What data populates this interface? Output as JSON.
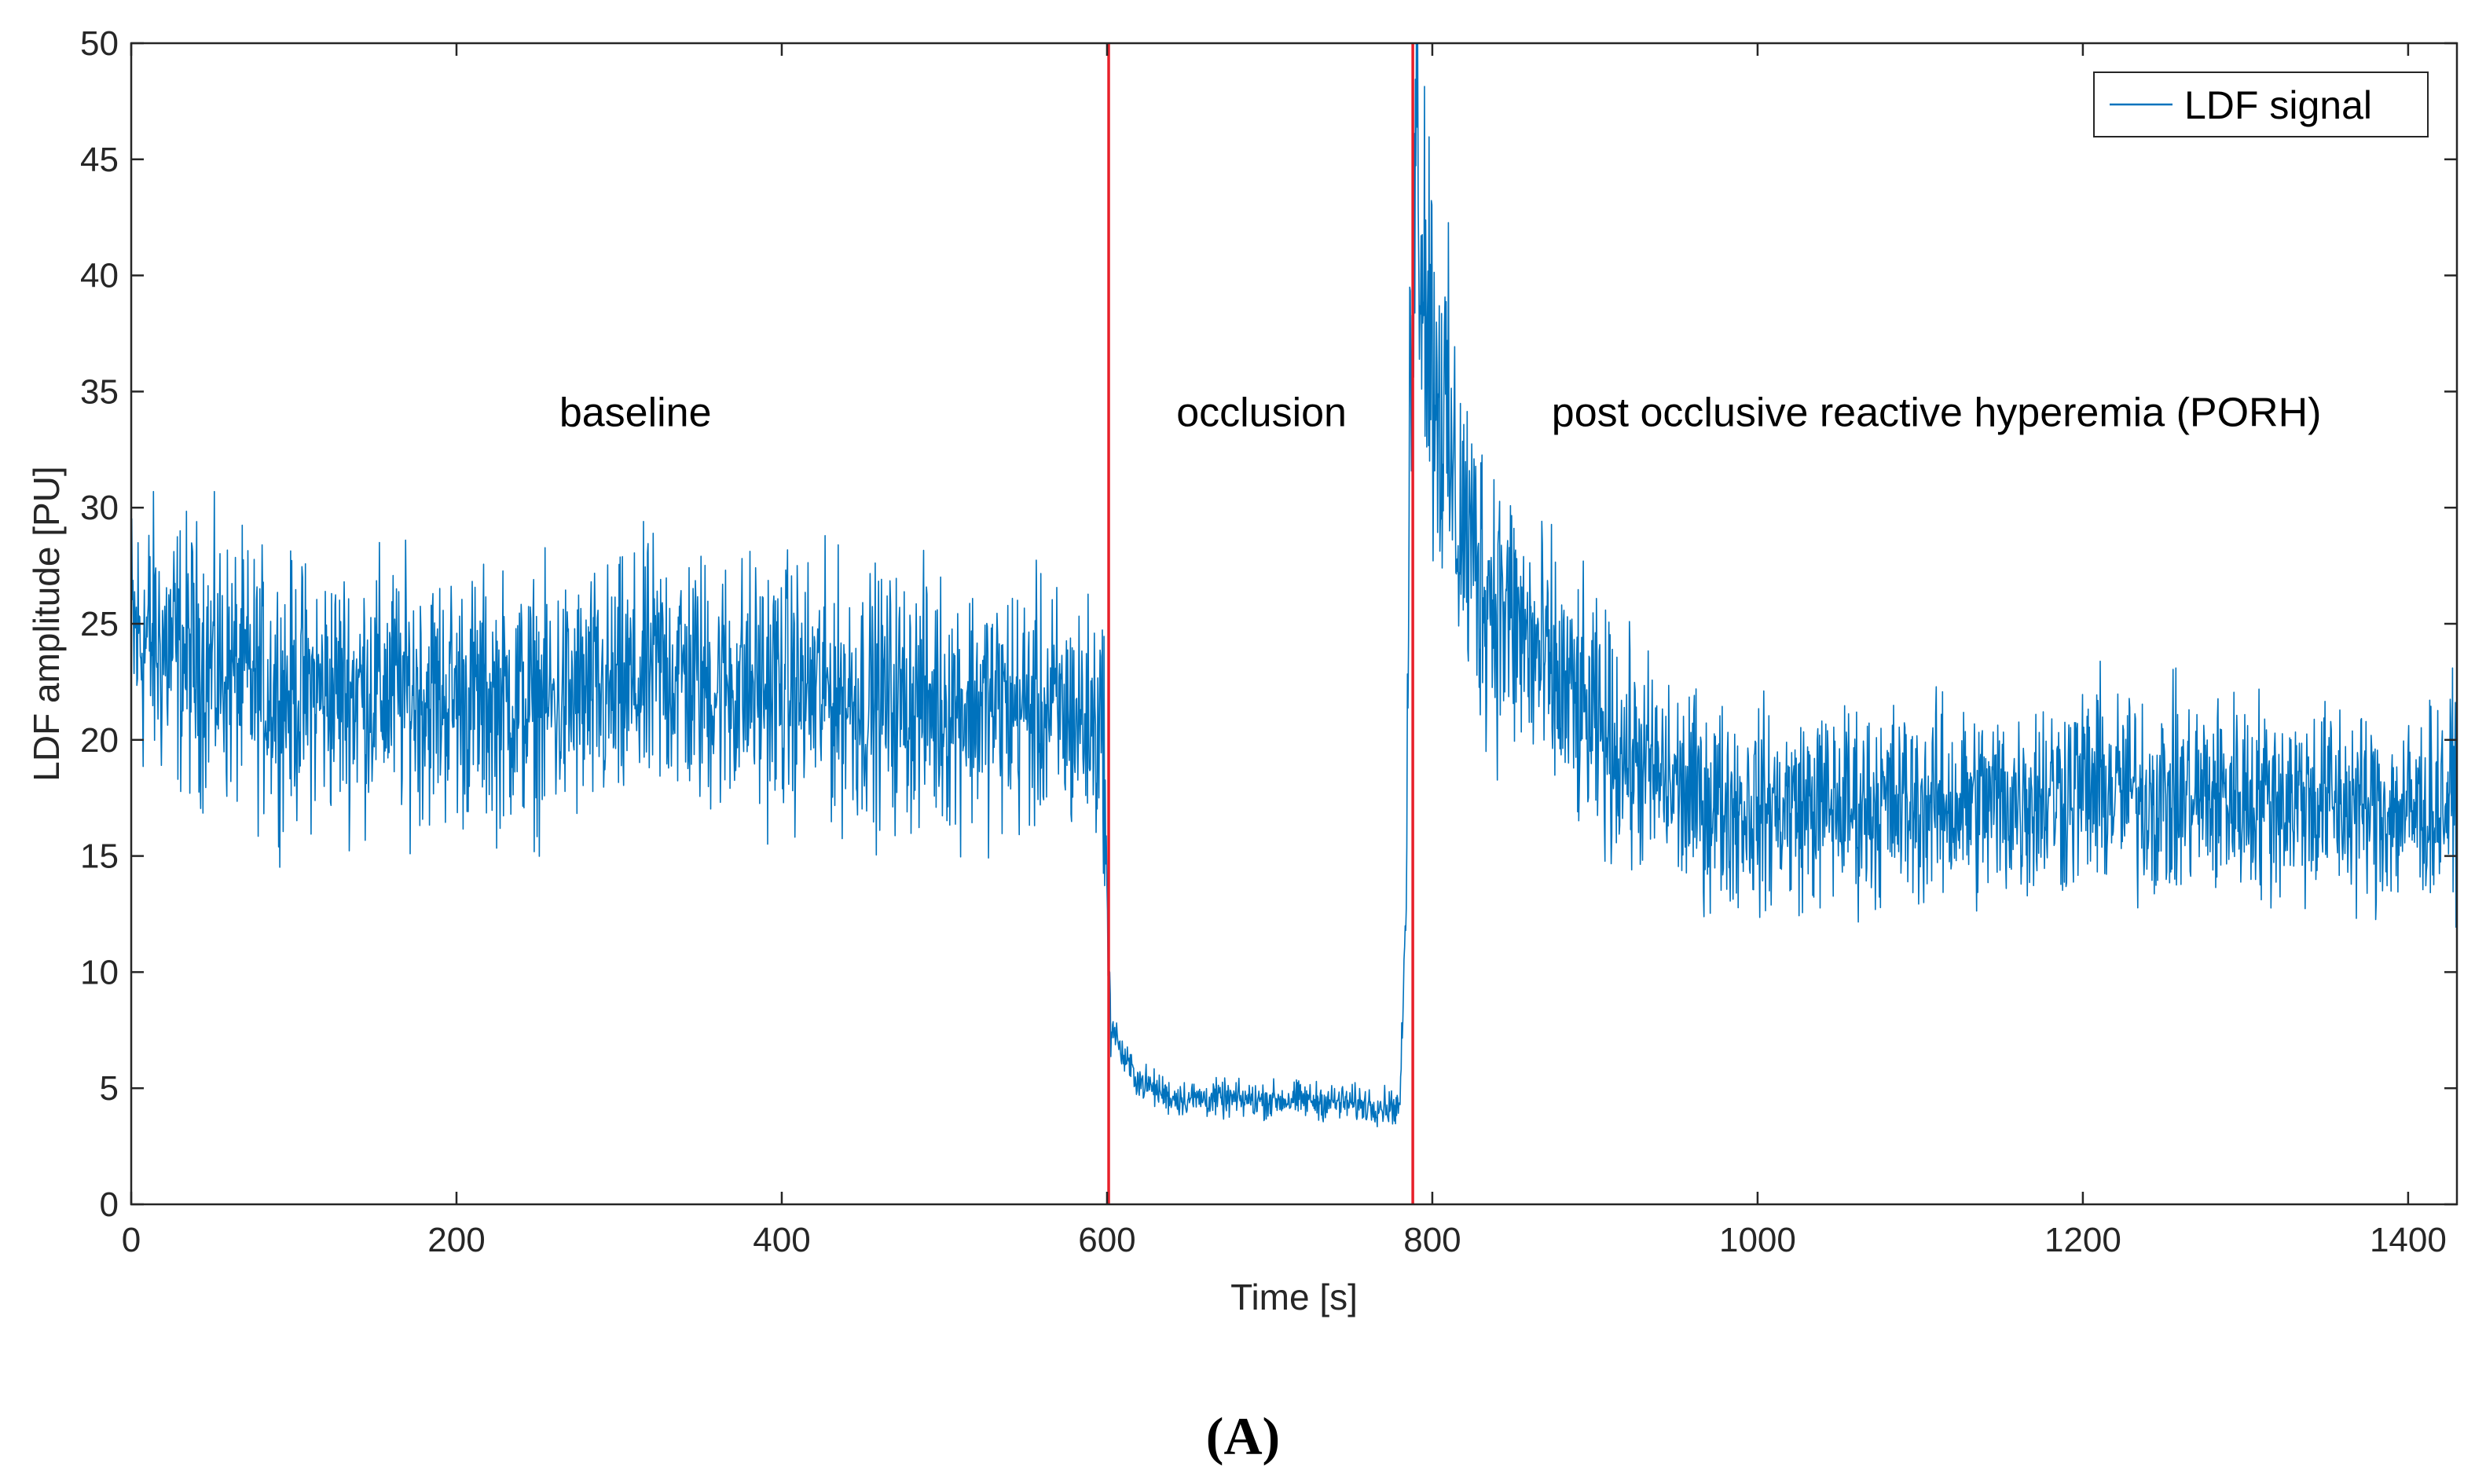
{
  "chart_data": {
    "type": "line",
    "xlabel": "Time [s]",
    "ylabel": "LDF amplitude [PU]",
    "xlim": [
      0,
      1430
    ],
    "ylim": [
      0,
      50
    ],
    "xticks": [
      0,
      200,
      400,
      600,
      800,
      1000,
      1200,
      1400
    ],
    "yticks": [
      0,
      5,
      10,
      15,
      20,
      25,
      30,
      35,
      40,
      45,
      50
    ],
    "grid": false,
    "legend": {
      "placement": "top-right",
      "entries": [
        "LDF signal"
      ]
    },
    "series": [
      {
        "name": "LDF signal",
        "color": "#0072BD",
        "x": [
          0,
          20,
          50,
          80,
          100,
          150,
          200,
          250,
          300,
          330,
          350,
          400,
          450,
          500,
          550,
          580,
          598,
          601,
          604,
          610,
          620,
          640,
          680,
          720,
          760,
          780,
          784,
          786,
          788,
          790,
          794,
          800,
          815,
          830,
          850,
          875,
          900,
          930,
          960,
          1000,
          1050,
          1100,
          1150,
          1200,
          1250,
          1300,
          1350,
          1380,
          1400,
          1430
        ],
        "y": [
          24.5,
          24.0,
          23.2,
          22.3,
          22.0,
          22.2,
          21.8,
          21.5,
          21.9,
          23.2,
          22.4,
          22.3,
          21.8,
          21.6,
          21.4,
          21.0,
          20.5,
          9.0,
          7.6,
          6.3,
          5.3,
          4.6,
          4.5,
          4.5,
          4.3,
          4.2,
          13.0,
          32.0,
          44.5,
          46.5,
          42.0,
          37.0,
          30.0,
          27.0,
          25.0,
          22.5,
          20.5,
          18.8,
          17.5,
          17.0,
          17.2,
          17.2,
          17.3,
          18.0,
          17.5,
          17.6,
          17.4,
          17.0,
          16.9,
          17.5
        ]
      }
    ],
    "vertical_lines": [
      {
        "x": 601,
        "color": "#E8202A"
      },
      {
        "x": 788,
        "color": "#E8202A"
      }
    ],
    "annotations": [
      {
        "text": "baseline",
        "x": 310,
        "y": 33.5
      },
      {
        "text": "occlusion",
        "x": 695,
        "y": 33.5
      },
      {
        "text": "post occlusive reactive hyperemia (PORH)",
        "x": 1110,
        "y": 33.5
      }
    ]
  },
  "panel_label": "(A)"
}
